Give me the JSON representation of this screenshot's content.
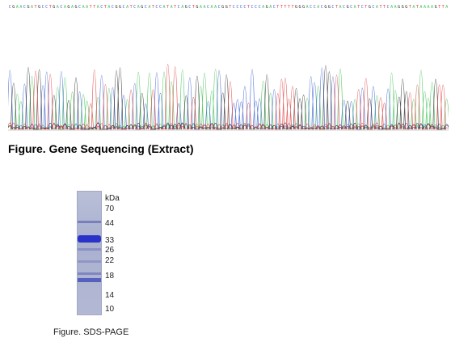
{
  "chromatogram": {
    "trace_colors": {
      "A": "#3cc050",
      "C": "#3a5fd0",
      "G": "#222222",
      "T": "#e04040"
    }
  },
  "captions": {
    "sequencing": "Figure. Gene Sequencing (Extract)",
    "sds_page": "Figure. SDS-PAGE"
  },
  "gel": {
    "unit_label": "kDa",
    "markers": [
      "70",
      "44",
      "33",
      "26",
      "22",
      "18",
      "14",
      "10"
    ]
  }
}
